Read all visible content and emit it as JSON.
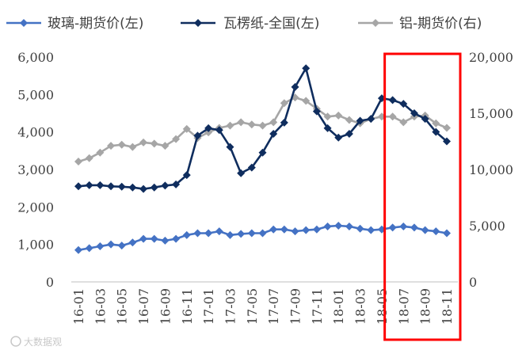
{
  "chart_data": {
    "type": "line",
    "x": [
      "16-01",
      "16-02",
      "16-03",
      "16-04",
      "16-05",
      "16-06",
      "16-07",
      "16-08",
      "16-09",
      "16-10",
      "16-11",
      "16-12",
      "17-01",
      "17-02",
      "17-03",
      "17-04",
      "17-05",
      "17-06",
      "17-07",
      "17-08",
      "17-09",
      "17-10",
      "17-11",
      "17-12",
      "18-01",
      "18-02",
      "18-03",
      "18-04",
      "18-05",
      "18-06",
      "18-07",
      "18-08",
      "18-09",
      "18-10",
      "18-11"
    ],
    "x_tick_labels": [
      "16-01",
      "16-03",
      "16-05",
      "16-07",
      "16-09",
      "16-11",
      "17-01",
      "17-03",
      "17-05",
      "17-07",
      "17-09",
      "17-11",
      "18-01",
      "18-03",
      "18-05",
      "18-07",
      "18-09",
      "18-11"
    ],
    "y_left": {
      "range": [
        0,
        6000
      ],
      "ticks": [
        "0",
        "1,000",
        "2,000",
        "3,000",
        "4,000",
        "5,000",
        "6,000"
      ]
    },
    "y_right": {
      "range": [
        0,
        20000
      ],
      "ticks": [
        "0",
        "5,000",
        "10,000",
        "15,000",
        "20,000"
      ]
    },
    "grid": false,
    "legend_position": "top",
    "series": [
      {
        "name": "玻璃-期货价(左)",
        "axis": "left",
        "color": "#4472c4",
        "values": [
          850,
          900,
          950,
          1000,
          970,
          1050,
          1150,
          1150,
          1100,
          1150,
          1250,
          1300,
          1300,
          1350,
          1250,
          1280,
          1300,
          1300,
          1400,
          1400,
          1350,
          1380,
          1400,
          1480,
          1500,
          1480,
          1420,
          1380,
          1400,
          1450,
          1480,
          1450,
          1380,
          1350,
          1300
        ]
      },
      {
        "name": "瓦楞纸-全国(左)",
        "axis": "left",
        "color": "#0f2d5e",
        "values": [
          2550,
          2580,
          2580,
          2550,
          2540,
          2520,
          2480,
          2520,
          2570,
          2600,
          2850,
          3900,
          4100,
          4050,
          3600,
          2900,
          3050,
          3450,
          3950,
          4250,
          5200,
          5700,
          4550,
          4100,
          3850,
          3950,
          4300,
          4350,
          4900,
          4850,
          4750,
          4500,
          4350,
          4000,
          3750
        ]
      },
      {
        "name": "铝-期货价(右)",
        "axis": "right",
        "color": "#a6a6a6",
        "values": [
          10700,
          11000,
          11500,
          12100,
          12200,
          12000,
          12400,
          12300,
          12100,
          12700,
          13600,
          12800,
          13300,
          13700,
          13900,
          14200,
          14000,
          13900,
          14200,
          15900,
          16400,
          16100,
          15400,
          14700,
          14800,
          14400,
          14100,
          14500,
          14700,
          14700,
          14200,
          14700,
          14800,
          14100,
          13700
        ]
      }
    ]
  },
  "highlight": {
    "color": "#ff0000",
    "from": "18-06",
    "to": "18-11"
  },
  "watermark": {
    "text": "大数据观"
  }
}
